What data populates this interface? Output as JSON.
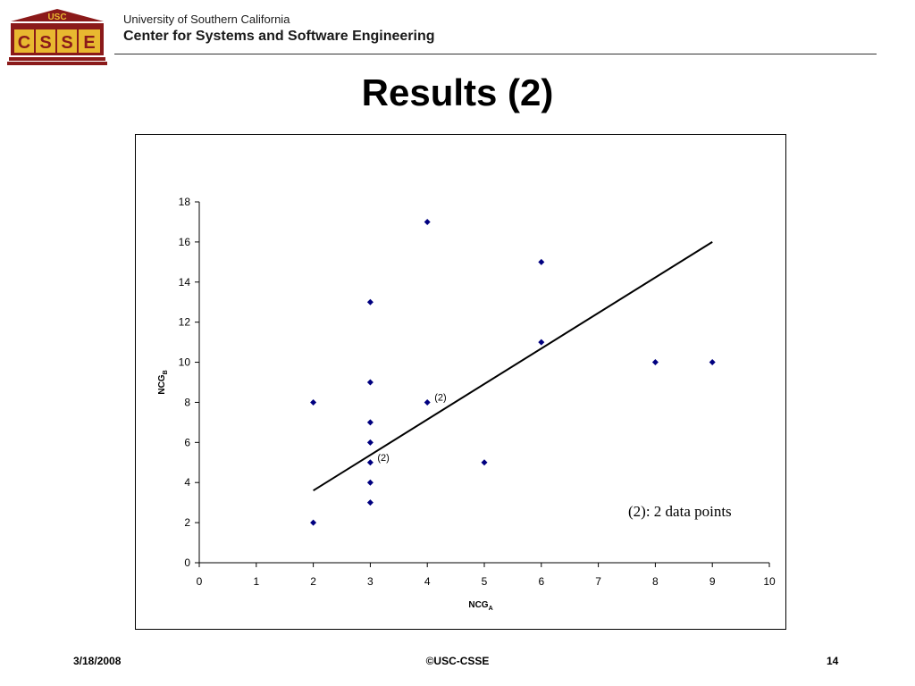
{
  "header": {
    "logo_top": "USC",
    "logo_letters": [
      "C",
      "S",
      "S",
      "E"
    ],
    "university": "University of Southern California",
    "center": "Center for Systems and Software Engineering"
  },
  "slide": {
    "title": "Results (2)"
  },
  "note": "(2): 2 data points",
  "footer": {
    "date": "3/18/2008",
    "copyright": "©USC-CSSE",
    "page": "14"
  },
  "colors": {
    "marker": "#000080",
    "logo_red": "#8b1a1a",
    "logo_gold": "#e8b830"
  },
  "chart_data": {
    "type": "scatter",
    "xlabel": "NCG",
    "xlabel_sub": "A",
    "ylabel": "NCG",
    "ylabel_sub": "B",
    "xlim": [
      0,
      10
    ],
    "ylim": [
      0,
      18
    ],
    "xticks": [
      0,
      1,
      2,
      3,
      4,
      5,
      6,
      7,
      8,
      9,
      10
    ],
    "yticks": [
      0,
      2,
      4,
      6,
      8,
      10,
      12,
      14,
      16,
      18
    ],
    "grid": false,
    "points": [
      {
        "x": 2,
        "y": 2
      },
      {
        "x": 2,
        "y": 8
      },
      {
        "x": 3,
        "y": 3
      },
      {
        "x": 3,
        "y": 4
      },
      {
        "x": 3,
        "y": 5
      },
      {
        "x": 3,
        "y": 6
      },
      {
        "x": 3,
        "y": 7
      },
      {
        "x": 3,
        "y": 9
      },
      {
        "x": 3,
        "y": 13
      },
      {
        "x": 4,
        "y": 8
      },
      {
        "x": 4,
        "y": 17
      },
      {
        "x": 5,
        "y": 5
      },
      {
        "x": 6,
        "y": 11
      },
      {
        "x": 6,
        "y": 15
      },
      {
        "x": 8,
        "y": 10
      },
      {
        "x": 9,
        "y": 10
      }
    ],
    "point_labels": [
      {
        "x": 4,
        "y": 8,
        "text": "(2)"
      },
      {
        "x": 3,
        "y": 5,
        "text": "(2)"
      }
    ],
    "trendline": {
      "x": [
        2,
        9
      ],
      "y": [
        3.6,
        16.0
      ]
    }
  }
}
